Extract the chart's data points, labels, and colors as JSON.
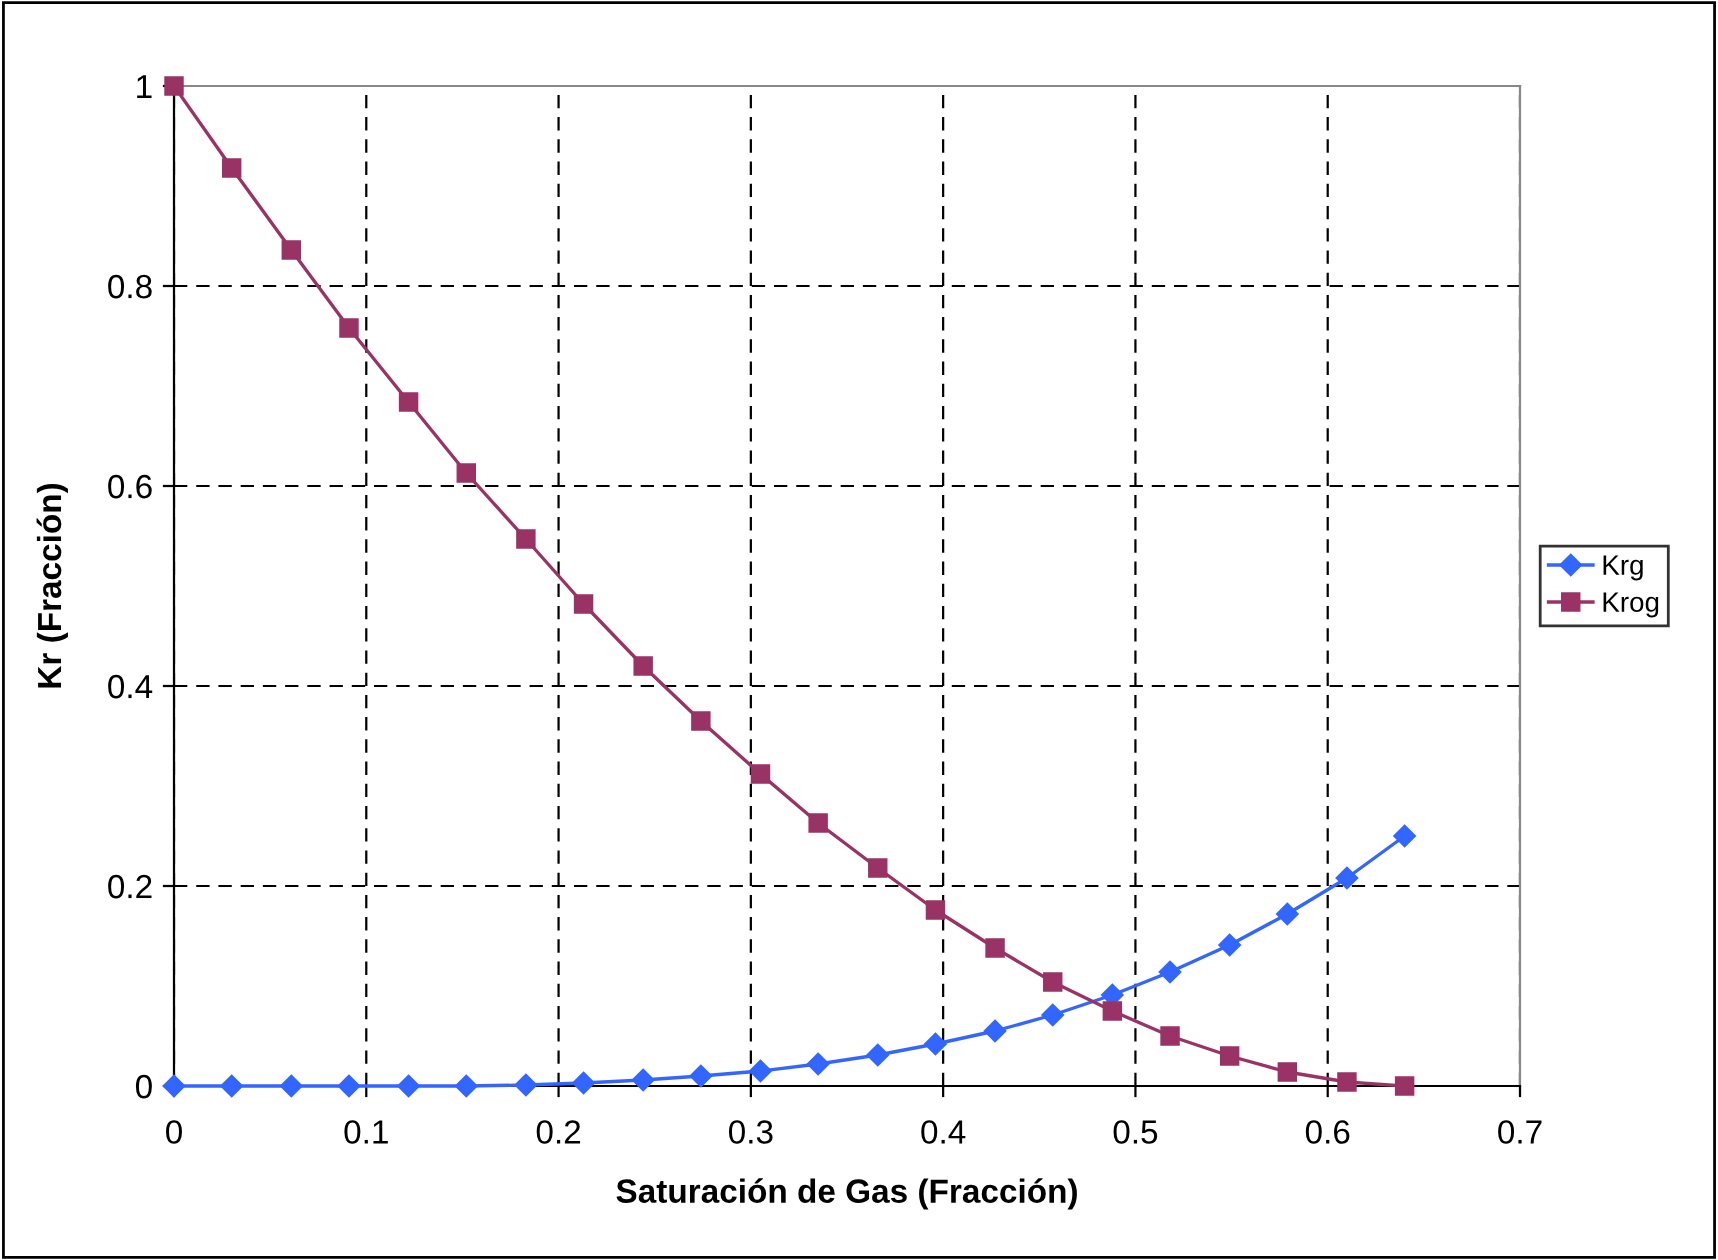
{
  "chart_data": {
    "type": "line",
    "xlabel": "Saturación de Gas (Fracción)",
    "ylabel": "Kr (Fracción)",
    "x": [
      0,
      0.03,
      0.061,
      0.091,
      0.122,
      0.152,
      0.183,
      0.213,
      0.244,
      0.274,
      0.305,
      0.335,
      0.366,
      0.396,
      0.427,
      0.457,
      0.488,
      0.518,
      0.549,
      0.579,
      0.61,
      0.64
    ],
    "series": [
      {
        "name": "Krg",
        "color": "#3366ff",
        "marker": "diamond",
        "values": [
          0,
          0,
          0,
          0,
          0,
          0,
          0.001,
          0.003,
          0.006,
          0.01,
          0.015,
          0.022,
          0.031,
          0.042,
          0.055,
          0.071,
          0.091,
          0.114,
          0.141,
          0.172,
          0.208,
          0.25
        ]
      },
      {
        "name": "Krog",
        "color": "#993366",
        "marker": "square",
        "values": [
          1,
          0.918,
          0.836,
          0.758,
          0.684,
          0.613,
          0.547,
          0.482,
          0.42,
          0.365,
          0.312,
          0.263,
          0.218,
          0.176,
          0.138,
          0.104,
          0.075,
          0.05,
          0.03,
          0.014,
          0.004,
          0
        ]
      }
    ],
    "xlim": [
      0,
      0.7
    ],
    "xticks": [
      0,
      0.1,
      0.2,
      0.3,
      0.4,
      0.5,
      0.6,
      0.7
    ],
    "ylim": [
      0,
      1
    ],
    "yticks": [
      0,
      0.2,
      0.4,
      0.6,
      0.8,
      1
    ],
    "grid": true,
    "legend": "right",
    "line_style": "solid"
  }
}
